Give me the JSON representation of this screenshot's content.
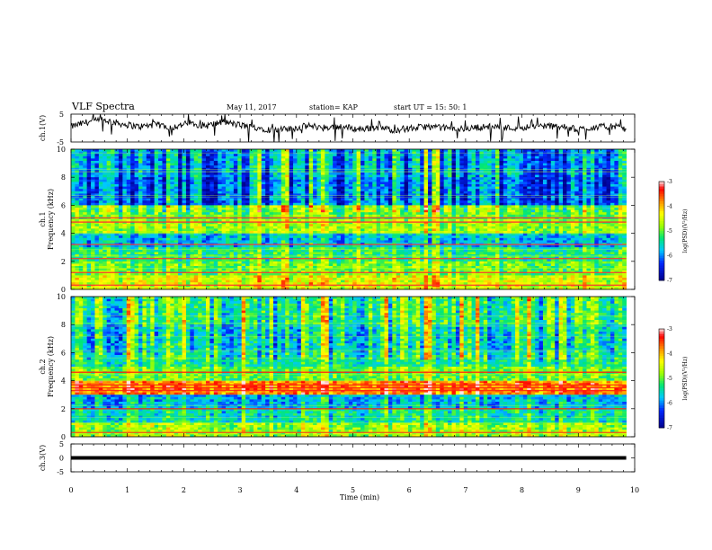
{
  "header": {
    "title": "VLF Spectra",
    "date": "May 11, 2017",
    "station": "station= KAP",
    "start": "start  UT  =   15: 50: 1"
  },
  "colorbar": {
    "label": "log(PSD)(V²/Hz)",
    "ticks": [
      "-3",
      "-4",
      "-5",
      "-6",
      "-7"
    ],
    "colors": [
      "#ffffff",
      "#ff0000",
      "#ffa500",
      "#ffff00",
      "#00ff00",
      "#00ffff",
      "#0050ff",
      "#0000a0"
    ]
  },
  "chart_data": [
    {
      "type": "line",
      "name": "ch1-waveform",
      "ylabel": "ch.1(V)",
      "ylim": [
        -5,
        5
      ],
      "yticks": [
        "5",
        "-5"
      ],
      "xlim": [
        0,
        10
      ],
      "data_end": 9.85,
      "x": [
        0,
        0.3,
        0.6,
        0.9,
        1.2,
        1.5,
        1.8,
        2.1,
        2.4,
        2.7,
        3.0,
        3.3,
        3.6,
        3.9,
        4.2,
        4.5,
        4.8,
        5.1,
        5.4,
        5.7,
        6.0,
        6.3,
        6.6,
        6.9,
        7.2,
        7.5,
        7.8,
        8.1,
        8.4,
        8.7,
        9.0,
        9.3,
        9.6,
        9.85
      ],
      "y": [
        0.5,
        2.2,
        2.8,
        1.5,
        0.5,
        1.2,
        0.3,
        1.8,
        0.8,
        2.2,
        1.0,
        0.2,
        -0.8,
        -0.3,
        0.8,
        0.2,
        0.6,
        -0.5,
        0.3,
        -0.6,
        -0.2,
        0.5,
        0.1,
        -0.4,
        0.2,
        0.6,
        0.0,
        0.4,
        0.8,
        0.5,
        -0.5,
        0.3,
        0.6,
        -0.2
      ]
    },
    {
      "type": "heatmap",
      "name": "ch1-spectrogram",
      "ylabel": "ch.1\nFrequency (kHz)",
      "ylim": [
        0,
        10
      ],
      "yticks": [
        "0",
        "2",
        "4",
        "6",
        "8",
        "10"
      ],
      "xlim": [
        0,
        10
      ],
      "clim": [
        -7,
        -3
      ],
      "band_levels_khz": {
        "0-1": -4.5,
        "1-2": -5.0,
        "2-3": -5.3,
        "3-4": -5.8,
        "4-5": -4.8,
        "5-6": -5.0,
        "6-8": -6.2,
        "8-10": -6.0
      },
      "strong_lines_khz": [
        0.3,
        1.2,
        2.2,
        3.2,
        4.8,
        5.1
      ]
    },
    {
      "type": "heatmap",
      "name": "ch2-spectrogram",
      "ylabel": "ch.2\nFrequency (kHz)",
      "ylim": [
        0,
        10
      ],
      "yticks": [
        "0",
        "2",
        "4",
        "6",
        "8",
        "10"
      ],
      "xlim": [
        0,
        10
      ],
      "clim": [
        -7,
        -3
      ],
      "band_levels_khz": {
        "0-1": -4.8,
        "1-2": -5.5,
        "2-3": -5.8,
        "3-4": -3.8,
        "4-5": -5.0,
        "5-6": -5.4,
        "6-8": -5.6,
        "8-10": -5.3
      },
      "strong_lines_khz": [
        0.3,
        2.0,
        3.3,
        3.5,
        3.7,
        4.6
      ]
    },
    {
      "type": "line",
      "name": "ch3-waveform",
      "ylabel": "ch.3(V)",
      "ylim": [
        -5,
        5
      ],
      "yticks": [
        "5",
        "0",
        "-5"
      ],
      "xlim": [
        0,
        10
      ],
      "x": [
        0,
        9.85
      ],
      "y": [
        0,
        0
      ]
    }
  ],
  "xaxis": {
    "label": "Time  (min)",
    "ticks": [
      "0",
      "1",
      "2",
      "3",
      "4",
      "5",
      "6",
      "7",
      "8",
      "9",
      "10"
    ]
  }
}
